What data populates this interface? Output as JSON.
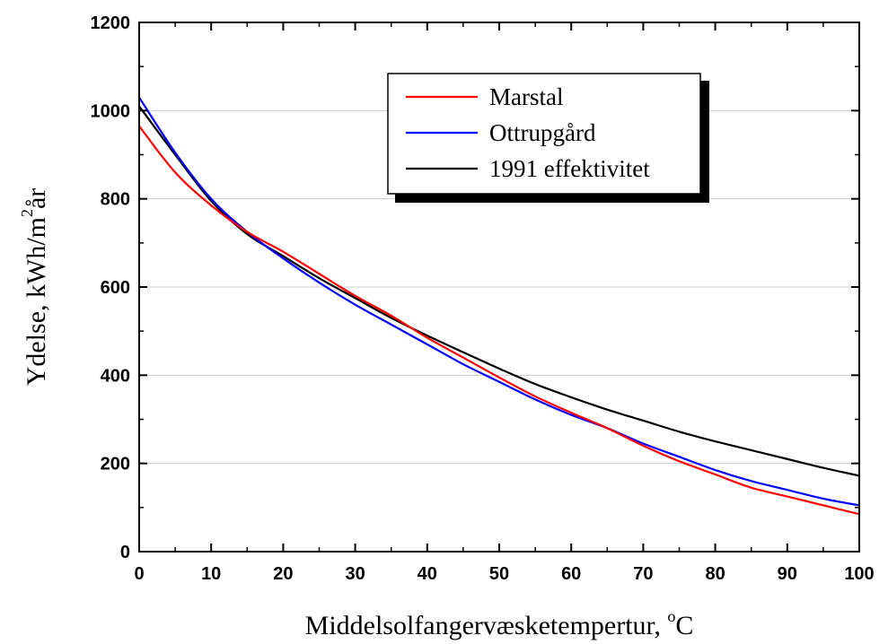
{
  "chart_data": {
    "type": "line",
    "xlabel": "Middelsolfangervæsketempertur, ",
    "xlabel_unit_sup": "o",
    "xlabel_unit": "C",
    "ylabel": "Ydelse, kWh/m",
    "ylabel_sup": "2",
    "ylabel_suffix": "år",
    "xlim": [
      0,
      100
    ],
    "ylim": [
      0,
      1200
    ],
    "xticks": [
      "0",
      "10",
      "20",
      "30",
      "40",
      "50",
      "60",
      "70",
      "80",
      "90",
      "100"
    ],
    "yticks": [
      "0",
      "200",
      "400",
      "600",
      "800",
      "1000",
      "1200"
    ],
    "grid": "horizontal",
    "legend_position": "top-right",
    "x": [
      0,
      5,
      10,
      15,
      20,
      25,
      30,
      35,
      40,
      45,
      50,
      55,
      60,
      65,
      70,
      75,
      80,
      85,
      90,
      95,
      100
    ],
    "series": [
      {
        "name": "Marstal",
        "color": "#ff0000",
        "values": [
          965,
          860,
          785,
          725,
          680,
          630,
          580,
          535,
          485,
          440,
          395,
          352,
          315,
          280,
          240,
          205,
          175,
          145,
          125,
          105,
          85
        ]
      },
      {
        "name": "Ottrupgård",
        "color": "#0000ff",
        "values": [
          1030,
          905,
          800,
          725,
          665,
          610,
          560,
          515,
          470,
          425,
          385,
          345,
          310,
          280,
          245,
          215,
          185,
          160,
          140,
          120,
          105
        ]
      },
      {
        "name": "1991 effektivitet",
        "color": "#000000",
        "values": [
          1010,
          900,
          795,
          720,
          670,
          620,
          575,
          530,
          490,
          452,
          415,
          380,
          350,
          322,
          297,
          272,
          250,
          230,
          210,
          190,
          172
        ]
      }
    ]
  }
}
